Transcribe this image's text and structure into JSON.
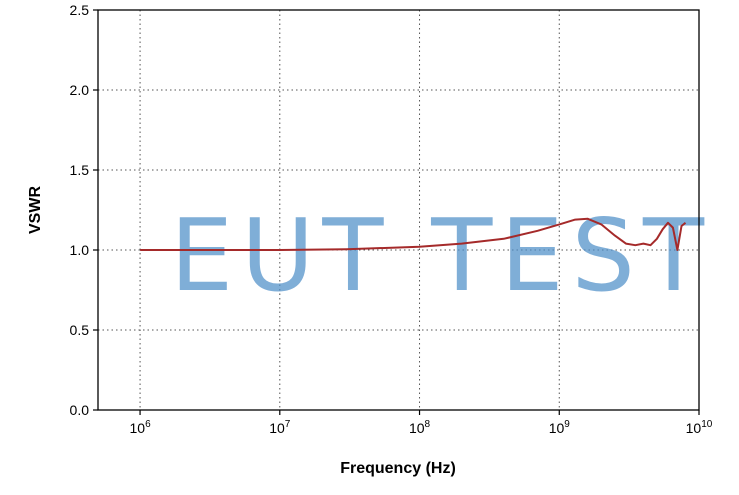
{
  "chart_data": {
    "type": "line",
    "title": "",
    "xlabel": "Frequency (Hz)",
    "ylabel": "VSWR",
    "x_scale": "log",
    "xlim": [
      500000,
      10000000000
    ],
    "ylim": [
      0.0,
      2.5
    ],
    "x_ticks": [
      {
        "base": "10",
        "exp": "6"
      },
      {
        "base": "10",
        "exp": "7"
      },
      {
        "base": "10",
        "exp": "8"
      },
      {
        "base": "10",
        "exp": "9"
      },
      {
        "base": "10",
        "exp": "10"
      }
    ],
    "x_tick_values": [
      1000000,
      10000000,
      100000000,
      1000000000,
      10000000000
    ],
    "y_ticks": [
      "0.0",
      "0.5",
      "1.0",
      "1.5",
      "2.0",
      "2.5"
    ],
    "y_tick_values": [
      0.0,
      0.5,
      1.0,
      1.5,
      2.0,
      2.5
    ],
    "grid": true,
    "series": [
      {
        "color": "#a52a2a",
        "x": [
          1000000,
          3000000,
          10000000,
          30000000,
          100000000,
          200000000,
          400000000,
          700000000,
          1000000000,
          1300000000,
          1600000000,
          2000000000,
          2500000000,
          3000000000,
          3500000000,
          4000000000,
          4500000000,
          5000000000,
          5500000000,
          6000000000,
          6500000000,
          7000000000,
          7500000000,
          8000000000
        ],
        "y": [
          1.0,
          1.0,
          1.0,
          1.005,
          1.02,
          1.04,
          1.07,
          1.12,
          1.16,
          1.19,
          1.195,
          1.16,
          1.09,
          1.04,
          1.03,
          1.04,
          1.03,
          1.07,
          1.13,
          1.17,
          1.14,
          1.0,
          1.15,
          1.17
        ]
      }
    ]
  },
  "watermark": "EUT TEST",
  "colors": {
    "line": "#a52a2a",
    "watermark": "#4f8fc9",
    "grid": "#555555"
  }
}
